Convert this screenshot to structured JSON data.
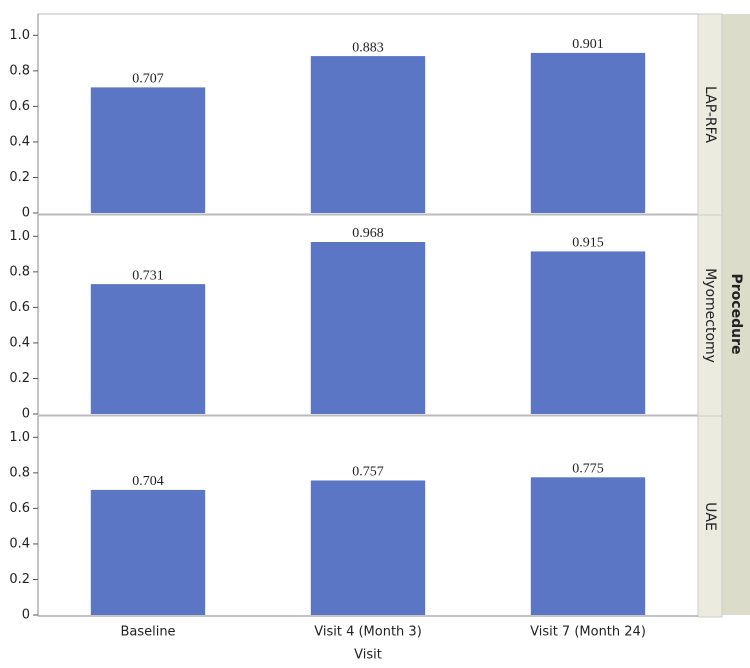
{
  "chart_data": {
    "type": "bar",
    "categories": [
      "Baseline",
      "Visit 4 (Month 3)",
      "Visit 7 (Month 24)"
    ],
    "x_label": "Visit",
    "facet_label": "Procedure",
    "series": [
      {
        "name": "LAP-RFA",
        "color": "#5a76c4",
        "values": [
          0.707,
          0.883,
          0.901
        ]
      },
      {
        "name": "Myomectomy",
        "color": "#5a76c4",
        "values": [
          0.731,
          0.968,
          0.915
        ]
      },
      {
        "name": "UAE",
        "color": "#5a76c4",
        "values": [
          0.704,
          0.757,
          0.775
        ]
      }
    ],
    "ylim": [
      0,
      1.12
    ],
    "yticks": [
      0,
      0.2,
      0.4,
      0.6,
      0.8,
      {
        "value": 1,
        "label": "1.0"
      }
    ],
    "grid": false
  }
}
